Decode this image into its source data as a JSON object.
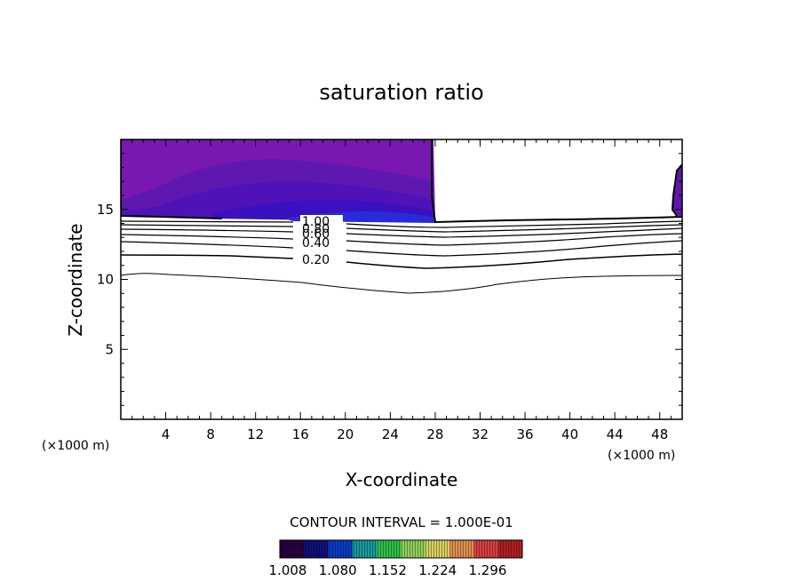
{
  "chart_data": {
    "type": "contour",
    "title": "saturation ratio",
    "xlabel": "X-coordinate",
    "ylabel": "Z-coordinate",
    "x_unit": "(×1000 m)",
    "z_unit": "(×1000 m)",
    "xlim": [
      0,
      50
    ],
    "ylim": [
      0,
      20
    ],
    "x_ticks": [
      4,
      8,
      12,
      16,
      20,
      24,
      28,
      32,
      36,
      40,
      44,
      48
    ],
    "y_ticks": [
      5,
      10,
      15
    ],
    "contour_interval_text": "CONTOUR INTERVAL = 1.000E-01",
    "contour_labels": [
      "1.00",
      "0.80",
      "0.60",
      "0.40",
      "0.20"
    ],
    "colorbar": {
      "ticks": [
        "1.008",
        "1.080",
        "1.152",
        "1.224",
        "1.296"
      ],
      "colors": [
        "#2a0040",
        "#10107a",
        "#0a3bc8",
        "#1a9a9a",
        "#2fbf4a",
        "#8fd05a",
        "#d8d060",
        "#e09050",
        "#d84040",
        "#b02020"
      ]
    },
    "filled_region_colors": [
      "#7818b0",
      "#5e18b0",
      "#4e12b8",
      "#3a10c0",
      "#2a2ad8"
    ]
  }
}
